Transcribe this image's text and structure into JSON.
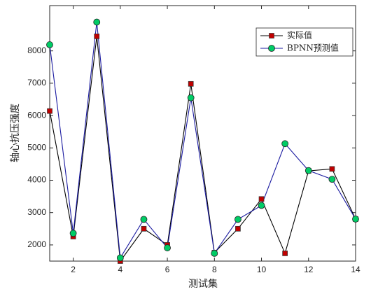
{
  "chart_data": {
    "type": "line",
    "x_label": "测试集",
    "y_label": "轴心抗压强度",
    "x": [
      1,
      2,
      3,
      4,
      5,
      6,
      7,
      8,
      9,
      10,
      11,
      12,
      13,
      14
    ],
    "series": [
      {
        "name": "实际值",
        "color": "#000000",
        "marker": "square",
        "marker_color": "#c00000",
        "values": [
          6140,
          2260,
          8450,
          1500,
          2500,
          2000,
          6980,
          1760,
          2500,
          3420,
          1740,
          4290,
          4350,
          2800
        ]
      },
      {
        "name": "BPNN预测值",
        "color": "#1a1aa0",
        "marker": "circle",
        "marker_color": "#00cc66",
        "values": [
          8190,
          2360,
          8890,
          1600,
          2790,
          1910,
          6550,
          1740,
          2790,
          3220,
          5130,
          4300,
          4030,
          2800
        ]
      }
    ],
    "xlim": [
      1,
      14
    ],
    "xticks": [
      2,
      4,
      6,
      8,
      10,
      12,
      14
    ],
    "ylim": [
      1500,
      9400
    ],
    "yticks": [
      2000,
      3000,
      4000,
      5000,
      6000,
      7000,
      8000
    ],
    "grid": false,
    "legend": "top-right"
  }
}
